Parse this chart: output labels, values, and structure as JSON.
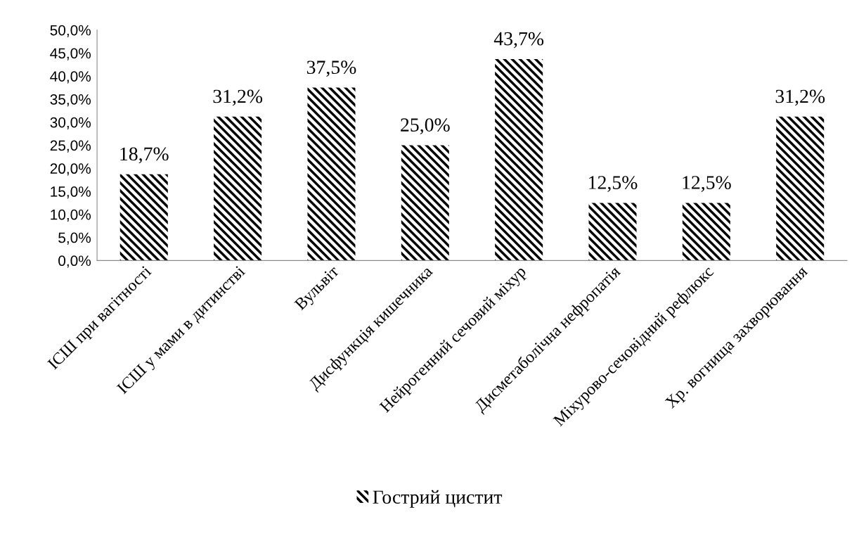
{
  "chart_data": {
    "type": "bar",
    "categories": [
      "ІСШ при вагітності",
      "ІСШ у мами в дитинстві",
      "Вульвіт",
      "Дисфункція кишечника",
      "Нейрогенний сечовий міхур",
      "Дисметаболічна нефропатія",
      "Міхурово-сечовідний рефлюкс",
      "Хр. вогнища захворювання"
    ],
    "series": [
      {
        "name": "Гострий цистит",
        "color": "#000000",
        "values": [
          18.7,
          31.2,
          37.5,
          25.0,
          43.7,
          12.5,
          12.5,
          31.2
        ],
        "value_labels": [
          "18,7%",
          "31,2%",
          "37,5%",
          "25,0%",
          "43,7%",
          "12,5%",
          "12,5%",
          "31,2%"
        ]
      }
    ],
    "ylim": [
      0,
      50
    ],
    "yticks": [
      {
        "value": 0,
        "label": "0,0%"
      },
      {
        "value": 5,
        "label": "5,0%"
      },
      {
        "value": 10,
        "label": "10,0%"
      },
      {
        "value": 15,
        "label": "15,0%"
      },
      {
        "value": 20,
        "label": "20,0%"
      },
      {
        "value": 25,
        "label": "25,0%"
      },
      {
        "value": 30,
        "label": "30,0%"
      },
      {
        "value": 35,
        "label": "35,0%"
      },
      {
        "value": 40,
        "label": "40,0%"
      },
      {
        "value": 45,
        "label": "45,0%"
      },
      {
        "value": 50,
        "label": "50,0%"
      }
    ],
    "grid": false,
    "legend": "bottom"
  }
}
